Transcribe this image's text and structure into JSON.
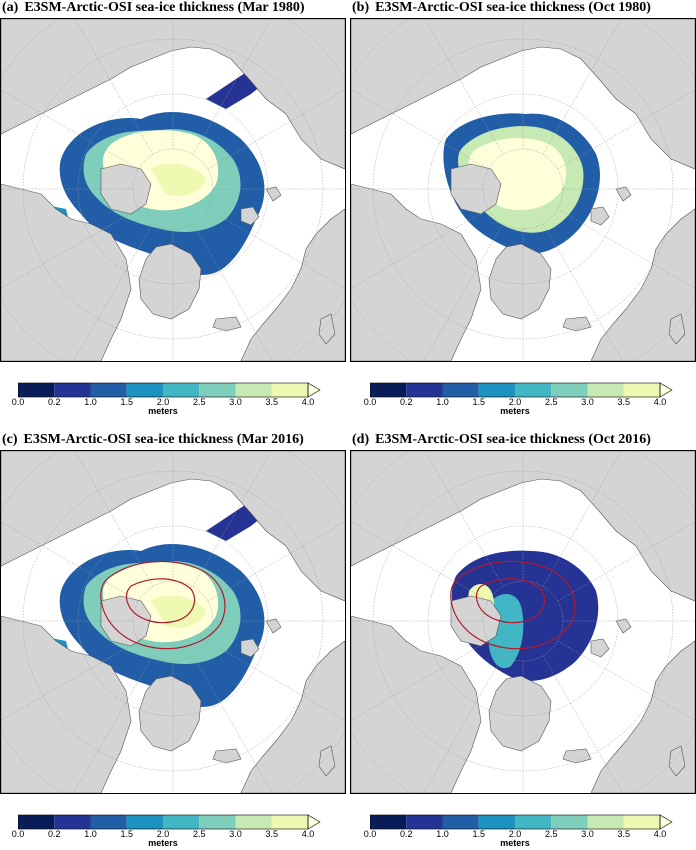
{
  "panels": [
    {
      "label": "(a)",
      "title": "E3SM-Arctic-OSI sea-ice thickness (Mar 1980)",
      "season": "mar",
      "contour": false
    },
    {
      "label": "(b)",
      "title": "E3SM-Arctic-OSI sea-ice thickness (Oct 1980)",
      "season": "oct",
      "contour": false
    },
    {
      "label": "(c)",
      "title": "E3SM-Arctic-OSI sea-ice thickness (Mar 2016)",
      "season": "mar",
      "contour": true
    },
    {
      "label": "(d)",
      "title": "E3SM-Arctic-OSI sea-ice thickness (Oct 2016)",
      "season": "oct2016",
      "contour": true
    }
  ],
  "colorbar": {
    "unit": "meters",
    "ticks": [
      "0.0",
      "0.2",
      "1.0",
      "1.5",
      "2.0",
      "2.5",
      "3.0",
      "3.5",
      "4.0"
    ],
    "colors": [
      "#081d58",
      "#253494",
      "#225ea8",
      "#1d91c0",
      "#41b6c4",
      "#7fcdbb",
      "#c7e9b4",
      "#edf8b1",
      "#ffffd9"
    ]
  },
  "colors": {
    "land": "#d4d4d4",
    "contour": "#b2182b",
    "graticule": "#999999"
  }
}
